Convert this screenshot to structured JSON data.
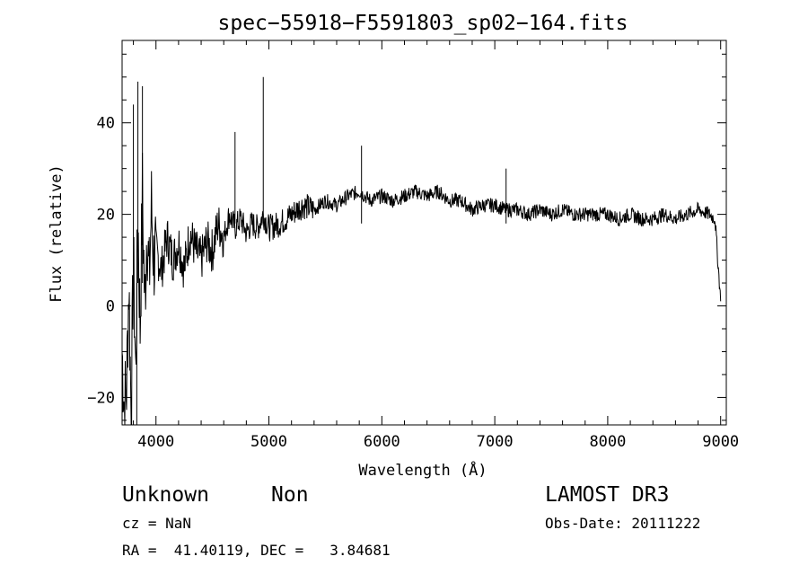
{
  "chart_data": {
    "type": "line",
    "title": "spec−55918−F5591803_sp02−164.fits",
    "xlabel": "Wavelength (Å)",
    "ylabel": "Flux (relative)",
    "xlim": [
      3700,
      9050
    ],
    "ylim": [
      -26,
      58
    ],
    "xticks": [
      4000,
      5000,
      6000,
      7000,
      8000,
      9000
    ],
    "xtick_labels": [
      "4000",
      "5000",
      "6000",
      "7000",
      "8000",
      "9000"
    ],
    "yticks": [
      -20,
      0,
      20,
      40
    ],
    "ytick_labels": [
      "−20",
      "0",
      "20",
      "40"
    ],
    "grid": false,
    "series": [
      {
        "name": "flux",
        "x": [
          3700,
          3720,
          3740,
          3760,
          3780,
          3800,
          3820,
          3840,
          3860,
          3880,
          3900,
          3920,
          3940,
          3960,
          3980,
          4000,
          4050,
          4100,
          4150,
          4200,
          4250,
          4300,
          4350,
          4400,
          4450,
          4500,
          4550,
          4600,
          4650,
          4700,
          4750,
          4800,
          4850,
          4900,
          4950,
          5000,
          5100,
          5200,
          5300,
          5400,
          5500,
          5600,
          5700,
          5800,
          5900,
          6000,
          6100,
          6200,
          6300,
          6400,
          6500,
          6600,
          6700,
          6800,
          6900,
          7000,
          7100,
          7200,
          7300,
          7400,
          7500,
          7600,
          7700,
          7800,
          7900,
          8000,
          8100,
          8200,
          8300,
          8400,
          8500,
          8600,
          8700,
          8800,
          8900,
          8950,
          9000
        ],
        "y": [
          -10,
          -22,
          -18,
          5,
          -24,
          10,
          -15,
          20,
          -5,
          25,
          0,
          18,
          5,
          22,
          10,
          12,
          8,
          15,
          10,
          14,
          8,
          16,
          12,
          10,
          14,
          12,
          18,
          15,
          20,
          17,
          19,
          16,
          18,
          17,
          20,
          17,
          18,
          20,
          22,
          21,
          23,
          22,
          24,
          25,
          23,
          24,
          23,
          24,
          25,
          24,
          25,
          23,
          23,
          21,
          22,
          22,
          21,
          21,
          20,
          21,
          20,
          21,
          20,
          20,
          20,
          20,
          19,
          20,
          19,
          19,
          20,
          19,
          20,
          21,
          20,
          19,
          1
        ]
      }
    ],
    "spikes": [
      {
        "x": 3800,
        "y": 44
      },
      {
        "x": 3840,
        "y": 49
      },
      {
        "x": 3880,
        "y": 48
      },
      {
        "x": 3830,
        "y": -26
      },
      {
        "x": 4700,
        "y": 38
      },
      {
        "x": 4950,
        "y": 50
      },
      {
        "x": 5820,
        "y": 35
      },
      {
        "x": 7100,
        "y": 30
      }
    ]
  },
  "info": {
    "object_class": "Unknown",
    "object_subclass": "Non",
    "cz": "cz = NaN",
    "radec": "RA =  41.40119, DEC =   3.84681",
    "survey": "LAMOST DR3",
    "obs_date": "Obs-Date: 20111222"
  }
}
